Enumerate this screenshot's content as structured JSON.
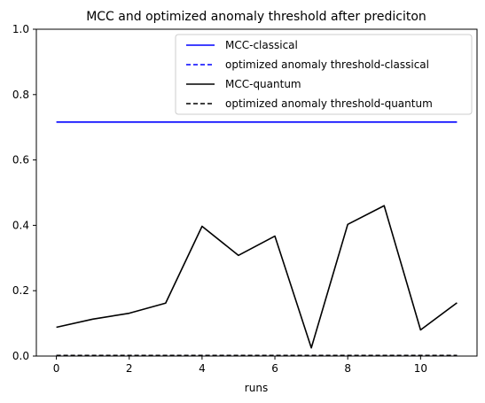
{
  "chart_data": {
    "type": "line",
    "title": "MCC and optimized anomaly threshold after prediciton",
    "xlabel": "runs",
    "ylabel": "",
    "xlim": [
      -0.55,
      11.55
    ],
    "ylim": [
      0,
      1
    ],
    "xticks": [
      0,
      2,
      4,
      6,
      8,
      10
    ],
    "yticks": [
      0.0,
      0.2,
      0.4,
      0.6,
      0.8,
      1.0
    ],
    "grid": false,
    "legend_position": "top-right",
    "x": [
      0,
      1,
      2,
      3,
      4,
      5,
      6,
      7,
      8,
      9,
      10,
      11
    ],
    "series": [
      {
        "name": "MCC-classical",
        "color": "#0000ff",
        "dashed": false,
        "values": [
          0.716,
          0.716,
          0.716,
          0.716,
          0.716,
          0.716,
          0.716,
          0.716,
          0.716,
          0.716,
          0.716,
          0.716
        ]
      },
      {
        "name": "optimized anomaly threshold-classical",
        "color": "#0000ff",
        "dashed": true,
        "values": [
          0.002,
          0.002,
          0.002,
          0.002,
          0.002,
          0.002,
          0.002,
          0.002,
          0.002,
          0.002,
          0.002,
          0.002
        ]
      },
      {
        "name": "MCC-quantum",
        "color": "#000000",
        "dashed": false,
        "values": [
          0.088,
          0.113,
          0.131,
          0.162,
          0.397,
          0.308,
          0.367,
          0.025,
          0.403,
          0.46,
          0.08,
          0.163
        ]
      },
      {
        "name": "optimized anomaly threshold-quantum",
        "color": "#000000",
        "dashed": true,
        "values": [
          0.002,
          0.002,
          0.002,
          0.002,
          0.002,
          0.002,
          0.002,
          0.002,
          0.002,
          0.002,
          0.002,
          0.002
        ]
      }
    ]
  }
}
